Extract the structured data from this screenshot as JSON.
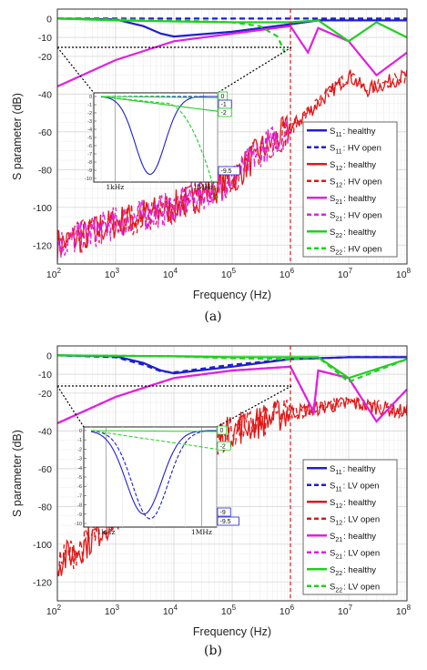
{
  "panels": [
    {
      "caption": "(a)",
      "ylabel": "S parameter (dB)",
      "xlabel": "Frequency (Hz)",
      "legend": [
        {
          "sub": "11",
          "text": ": healthy",
          "color": "#1f1fd0",
          "dash": false
        },
        {
          "sub": "11",
          "text": ": HV open",
          "color": "#1f1fd0",
          "dash": true
        },
        {
          "sub": "12",
          "text": ": healthy",
          "color": "#e01818",
          "dash": false
        },
        {
          "sub": "12",
          "text": ": HV open",
          "color": "#e01818",
          "dash": true
        },
        {
          "sub": "21",
          "text": ": healthy",
          "color": "#e020e0",
          "dash": false
        },
        {
          "sub": "21",
          "text": ": HV open",
          "color": "#e020e0",
          "dash": true
        },
        {
          "sub": "22",
          "text": ": healthy",
          "color": "#20d020",
          "dash": false
        },
        {
          "sub": "22",
          "text": ": HV open",
          "color": "#20d020",
          "dash": true
        }
      ],
      "inset_xticks": [
        "1kHz",
        "1MHz"
      ],
      "inset_value_labels": [
        "0",
        "-1",
        "-2",
        "-9.5"
      ]
    },
    {
      "caption": "(b)",
      "ylabel": "S parameter (dB)",
      "xlabel": "Frequency (Hz)",
      "legend": [
        {
          "sub": "11",
          "text": ": healthy",
          "color": "#1f1fd0",
          "dash": false
        },
        {
          "sub": "11",
          "text": ": LV open",
          "color": "#1f1fd0",
          "dash": true
        },
        {
          "sub": "12",
          "text": ": healthy",
          "color": "#e01818",
          "dash": false
        },
        {
          "sub": "12",
          "text": ": LV open",
          "color": "#e01818",
          "dash": true
        },
        {
          "sub": "21",
          "text": ": healthy",
          "color": "#e020e0",
          "dash": false
        },
        {
          "sub": "21",
          "text": ": LV open",
          "color": "#e020e0",
          "dash": true
        },
        {
          "sub": "22",
          "text": ": healthy",
          "color": "#20d020",
          "dash": false
        },
        {
          "sub": "22",
          "text": ": LV open",
          "color": "#20d020",
          "dash": true
        }
      ],
      "inset_xticks": [
        "1kHz",
        "1MHz"
      ],
      "inset_value_labels": [
        "0",
        "-2",
        "-9",
        "-9.5"
      ]
    }
  ],
  "chart_data": [
    {
      "type": "line",
      "title": "",
      "xlabel": "Frequency (Hz)",
      "ylabel": "S parameter (dB)",
      "xscale": "log",
      "xlim": [
        100,
        100000000
      ],
      "ylim": [
        -130,
        5
      ],
      "yticks": [
        0,
        -10,
        -20,
        -40,
        -60,
        -80,
        -100,
        -120
      ],
      "xticks": [
        "10^2",
        "10^3",
        "10^4",
        "10^5",
        "10^6",
        "10^7",
        "10^8"
      ],
      "grid": true,
      "legend_position": "right",
      "reference_line_x": 1000000,
      "series": [
        {
          "name": "S11 : healthy",
          "x": [
            100,
            1000,
            3000,
            6000,
            10000,
            100000,
            1000000,
            3000000,
            10000000,
            50000000,
            100000000
          ],
          "values": [
            0,
            -0.5,
            -4,
            -8,
            -9.5,
            -7,
            -3,
            -1,
            -1,
            -1,
            -1
          ]
        },
        {
          "name": "S11 : HV open",
          "x": [
            100,
            1000,
            10000,
            100000,
            1000000,
            10000000,
            100000000
          ],
          "values": [
            0,
            0,
            0,
            0,
            0,
            0,
            0
          ]
        },
        {
          "name": "S12 : healthy",
          "x": [
            100,
            300,
            1000,
            10000,
            100000,
            300000,
            1000000,
            3000000,
            10000000,
            20000000,
            100000000
          ],
          "values": [
            -120,
            -115,
            -108,
            -100,
            -85,
            -70,
            -58,
            -45,
            -30,
            -38,
            -30
          ]
        },
        {
          "name": "S12 : HV open",
          "x": [
            100,
            300,
            1000,
            10000,
            100000,
            300000,
            1000000,
            3000000,
            10000000,
            20000000,
            100000000
          ],
          "values": [
            -120,
            -115,
            -108,
            -100,
            -85,
            -70,
            -58,
            -45,
            -30,
            -38,
            -30
          ]
        },
        {
          "name": "S21 : healthy",
          "x": [
            100,
            1000,
            10000,
            100000,
            1000000,
            2000000,
            3000000,
            10000000,
            30000000,
            100000000
          ],
          "values": [
            -36,
            -22,
            -12,
            -8,
            -4,
            -18,
            -5,
            -12,
            -30,
            -18
          ]
        },
        {
          "name": "S21 : HV open",
          "x": [
            100,
            300,
            1000,
            10000,
            100000,
            300000,
            1000000
          ],
          "values": [
            -120,
            -115,
            -108,
            -100,
            -85,
            -70,
            -58
          ]
        },
        {
          "name": "S22 : healthy",
          "x": [
            100,
            1000,
            10000,
            100000,
            1000000,
            3000000,
            10000000,
            30000000,
            100000000
          ],
          "values": [
            0,
            -1,
            -1.5,
            -2,
            -2,
            -1,
            -12,
            -2,
            -10
          ]
        },
        {
          "name": "S22 : HV open",
          "x": [
            100,
            10000,
            100000,
            300000,
            600000,
            800000
          ],
          "values": [
            0,
            -1,
            -2,
            -4,
            -9.5,
            -18
          ]
        }
      ]
    },
    {
      "type": "line",
      "title": "",
      "xlabel": "Frequency (Hz)",
      "ylabel": "S parameter (dB)",
      "xscale": "log",
      "xlim": [
        100,
        100000000
      ],
      "ylim": [
        -130,
        5
      ],
      "yticks": [
        0,
        -10,
        -20,
        -40,
        -60,
        -80,
        -100,
        -120
      ],
      "xticks": [
        "10^2",
        "10^3",
        "10^4",
        "10^5",
        "10^6",
        "10^7",
        "10^8"
      ],
      "grid": true,
      "legend_position": "right",
      "reference_line_x": 1000000,
      "series": [
        {
          "name": "S11 : healthy",
          "x": [
            100,
            1000,
            3000,
            6000,
            10000,
            100000,
            1000000,
            10000000,
            100000000
          ],
          "values": [
            0,
            -0.5,
            -4,
            -8,
            -9.5,
            -6,
            -2,
            -1,
            -1
          ]
        },
        {
          "name": "S11 : LV open",
          "x": [
            100,
            1000,
            3000,
            6000,
            10000,
            100000,
            1000000,
            10000000,
            100000000
          ],
          "values": [
            0,
            -1,
            -5,
            -8.5,
            -9,
            -5,
            -2,
            -1,
            -1
          ]
        },
        {
          "name": "S12 : healthy",
          "x": [
            100,
            300,
            1000,
            10000,
            100000,
            1000000,
            3000000,
            10000000,
            100000000
          ],
          "values": [
            -110,
            -100,
            -85,
            -55,
            -40,
            -30,
            -28,
            -25,
            -30
          ]
        },
        {
          "name": "S12 : LV open",
          "x": [
            100,
            300,
            1000,
            10000,
            100000,
            1000000,
            3000000,
            10000000,
            100000000
          ],
          "values": [
            -110,
            -100,
            -85,
            -55,
            -40,
            -30,
            -28,
            -25,
            -30
          ]
        },
        {
          "name": "S21 : healthy",
          "x": [
            100,
            1000,
            10000,
            100000,
            1000000,
            2500000,
            3000000,
            10000000,
            30000000,
            100000000
          ],
          "values": [
            -36,
            -22,
            -12,
            -8,
            -6,
            -30,
            -8,
            -12,
            -35,
            -18
          ]
        },
        {
          "name": "S21 : LV open",
          "x": [
            100,
            1000,
            10000,
            100000,
            1000000,
            2500000,
            3000000,
            10000000,
            30000000,
            100000000
          ],
          "values": [
            -36,
            -22,
            -12,
            -8,
            -6,
            -30,
            -8,
            -12,
            -35,
            -18
          ]
        },
        {
          "name": "S22 : healthy",
          "x": [
            100,
            1000,
            10000,
            100000,
            1000000,
            3000000,
            10000000,
            100000000
          ],
          "values": [
            0,
            -0.2,
            -0.5,
            -1,
            -1,
            -1,
            -12,
            -2
          ]
        },
        {
          "name": "S22 : LV open",
          "x": [
            100,
            1000,
            10000,
            100000,
            1000000,
            3000000,
            10000000,
            100000000
          ],
          "values": [
            0,
            -0.2,
            -0.5,
            -1.5,
            -2,
            -1,
            -14,
            -2
          ]
        }
      ]
    }
  ]
}
